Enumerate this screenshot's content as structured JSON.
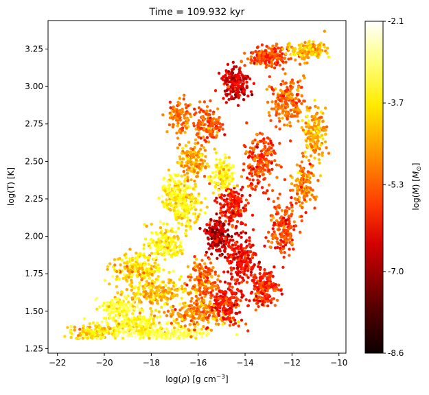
{
  "chart_data": {
    "type": "scatter",
    "title": "Time = 109.932 kyr",
    "xlabel_pre": "log(",
    "xlabel_rho": "ρ",
    "xlabel_mid": ") [g cm",
    "xlabel_exp": "−3",
    "xlabel_post": "]",
    "ylabel": "log(T) [K]",
    "colorbar_label": "log(M) [M☉]",
    "colorbar_label_parts": {
      "pre": "log(",
      "m": "M",
      "mid": ") [",
      "msym": "M",
      "sub": "⊙",
      "post": "]"
    },
    "xlim": [
      -22.4,
      -9.7
    ],
    "ylim": [
      1.22,
      3.44
    ],
    "xticks": [
      -22,
      -20,
      -18,
      -16,
      -14,
      -12,
      -10
    ],
    "xtick_labels": [
      "−22",
      "−20",
      "−18",
      "−16",
      "−14",
      "−12",
      "−10"
    ],
    "yticks": [
      1.25,
      1.5,
      1.75,
      2.0,
      2.25,
      2.5,
      2.75,
      3.0,
      3.25
    ],
    "ytick_labels": [
      "1.25",
      "1.50",
      "1.75",
      "2.00",
      "2.25",
      "2.50",
      "2.75",
      "3.00",
      "3.25"
    ],
    "colorbar_range": [
      -8.6,
      -2.1
    ],
    "colorbar_ticks": [
      -2.1,
      -3.7,
      -5.3,
      -7.0,
      -8.6
    ],
    "colorbar_tick_labels": [
      "-2.1",
      "-3.7",
      "-5.3",
      "-7.0",
      "-8.6"
    ],
    "colormap": "hot",
    "grid": false,
    "point_clusters": [
      {
        "x": -17.5,
        "y": 1.35,
        "sx": 1.6,
        "sy": 0.03,
        "c": -3.2,
        "n": 260
      },
      {
        "x": -18.8,
        "y": 1.42,
        "sx": 1.2,
        "sy": 0.05,
        "c": -3.6,
        "n": 180
      },
      {
        "x": -20.5,
        "y": 1.36,
        "sx": 0.8,
        "sy": 0.04,
        "c": -4.2,
        "n": 120
      },
      {
        "x": -16.0,
        "y": 1.48,
        "sx": 1.1,
        "sy": 0.08,
        "c": -4.8,
        "n": 200
      },
      {
        "x": -17.8,
        "y": 1.62,
        "sx": 1.1,
        "sy": 0.08,
        "c": -4.4,
        "n": 200
      },
      {
        "x": -18.6,
        "y": 1.78,
        "sx": 0.9,
        "sy": 0.08,
        "c": -4.2,
        "n": 170
      },
      {
        "x": -17.4,
        "y": 1.95,
        "sx": 0.7,
        "sy": 0.1,
        "c": -3.8,
        "n": 160
      },
      {
        "x": -16.6,
        "y": 2.2,
        "sx": 0.6,
        "sy": 0.12,
        "c": -3.9,
        "n": 180
      },
      {
        "x": -16.2,
        "y": 2.5,
        "sx": 0.5,
        "sy": 0.1,
        "c": -4.6,
        "n": 150
      },
      {
        "x": -15.6,
        "y": 2.75,
        "sx": 0.5,
        "sy": 0.1,
        "c": -5.4,
        "n": 140
      },
      {
        "x": -14.4,
        "y": 3.02,
        "sx": 0.5,
        "sy": 0.09,
        "c": -6.6,
        "n": 180
      },
      {
        "x": -13.0,
        "y": 3.2,
        "sx": 0.7,
        "sy": 0.05,
        "c": -5.6,
        "n": 200
      },
      {
        "x": -11.3,
        "y": 3.24,
        "sx": 0.6,
        "sy": 0.05,
        "c": -4.4,
        "n": 160
      },
      {
        "x": -12.2,
        "y": 2.9,
        "sx": 0.6,
        "sy": 0.12,
        "c": -5.2,
        "n": 180
      },
      {
        "x": -11.0,
        "y": 2.7,
        "sx": 0.4,
        "sy": 0.14,
        "c": -4.6,
        "n": 150
      },
      {
        "x": -13.4,
        "y": 2.5,
        "sx": 0.6,
        "sy": 0.15,
        "c": -5.6,
        "n": 200
      },
      {
        "x": -14.5,
        "y": 2.2,
        "sx": 0.5,
        "sy": 0.12,
        "c": -6.0,
        "n": 180
      },
      {
        "x": -15.2,
        "y": 2.0,
        "sx": 0.4,
        "sy": 0.1,
        "c": -6.9,
        "n": 170
      },
      {
        "x": -14.2,
        "y": 1.85,
        "sx": 0.6,
        "sy": 0.12,
        "c": -6.2,
        "n": 200
      },
      {
        "x": -13.2,
        "y": 1.65,
        "sx": 0.5,
        "sy": 0.1,
        "c": -5.8,
        "n": 170
      },
      {
        "x": -12.4,
        "y": 2.05,
        "sx": 0.5,
        "sy": 0.15,
        "c": -5.6,
        "n": 180
      },
      {
        "x": -11.5,
        "y": 2.35,
        "sx": 0.4,
        "sy": 0.15,
        "c": -5.0,
        "n": 140
      },
      {
        "x": -14.8,
        "y": 1.55,
        "sx": 0.6,
        "sy": 0.1,
        "c": -6.0,
        "n": 170
      },
      {
        "x": -15.8,
        "y": 1.7,
        "sx": 0.5,
        "sy": 0.12,
        "c": -5.2,
        "n": 150
      },
      {
        "x": -17.0,
        "y": 2.3,
        "sx": 0.5,
        "sy": 0.1,
        "c": -3.6,
        "n": 120
      },
      {
        "x": -16.8,
        "y": 2.8,
        "sx": 0.4,
        "sy": 0.1,
        "c": -5.0,
        "n": 100
      },
      {
        "x": -15.0,
        "y": 2.4,
        "sx": 0.4,
        "sy": 0.1,
        "c": -3.8,
        "n": 120
      },
      {
        "x": -19.3,
        "y": 1.52,
        "sx": 0.7,
        "sy": 0.06,
        "c": -3.4,
        "n": 130
      }
    ]
  }
}
